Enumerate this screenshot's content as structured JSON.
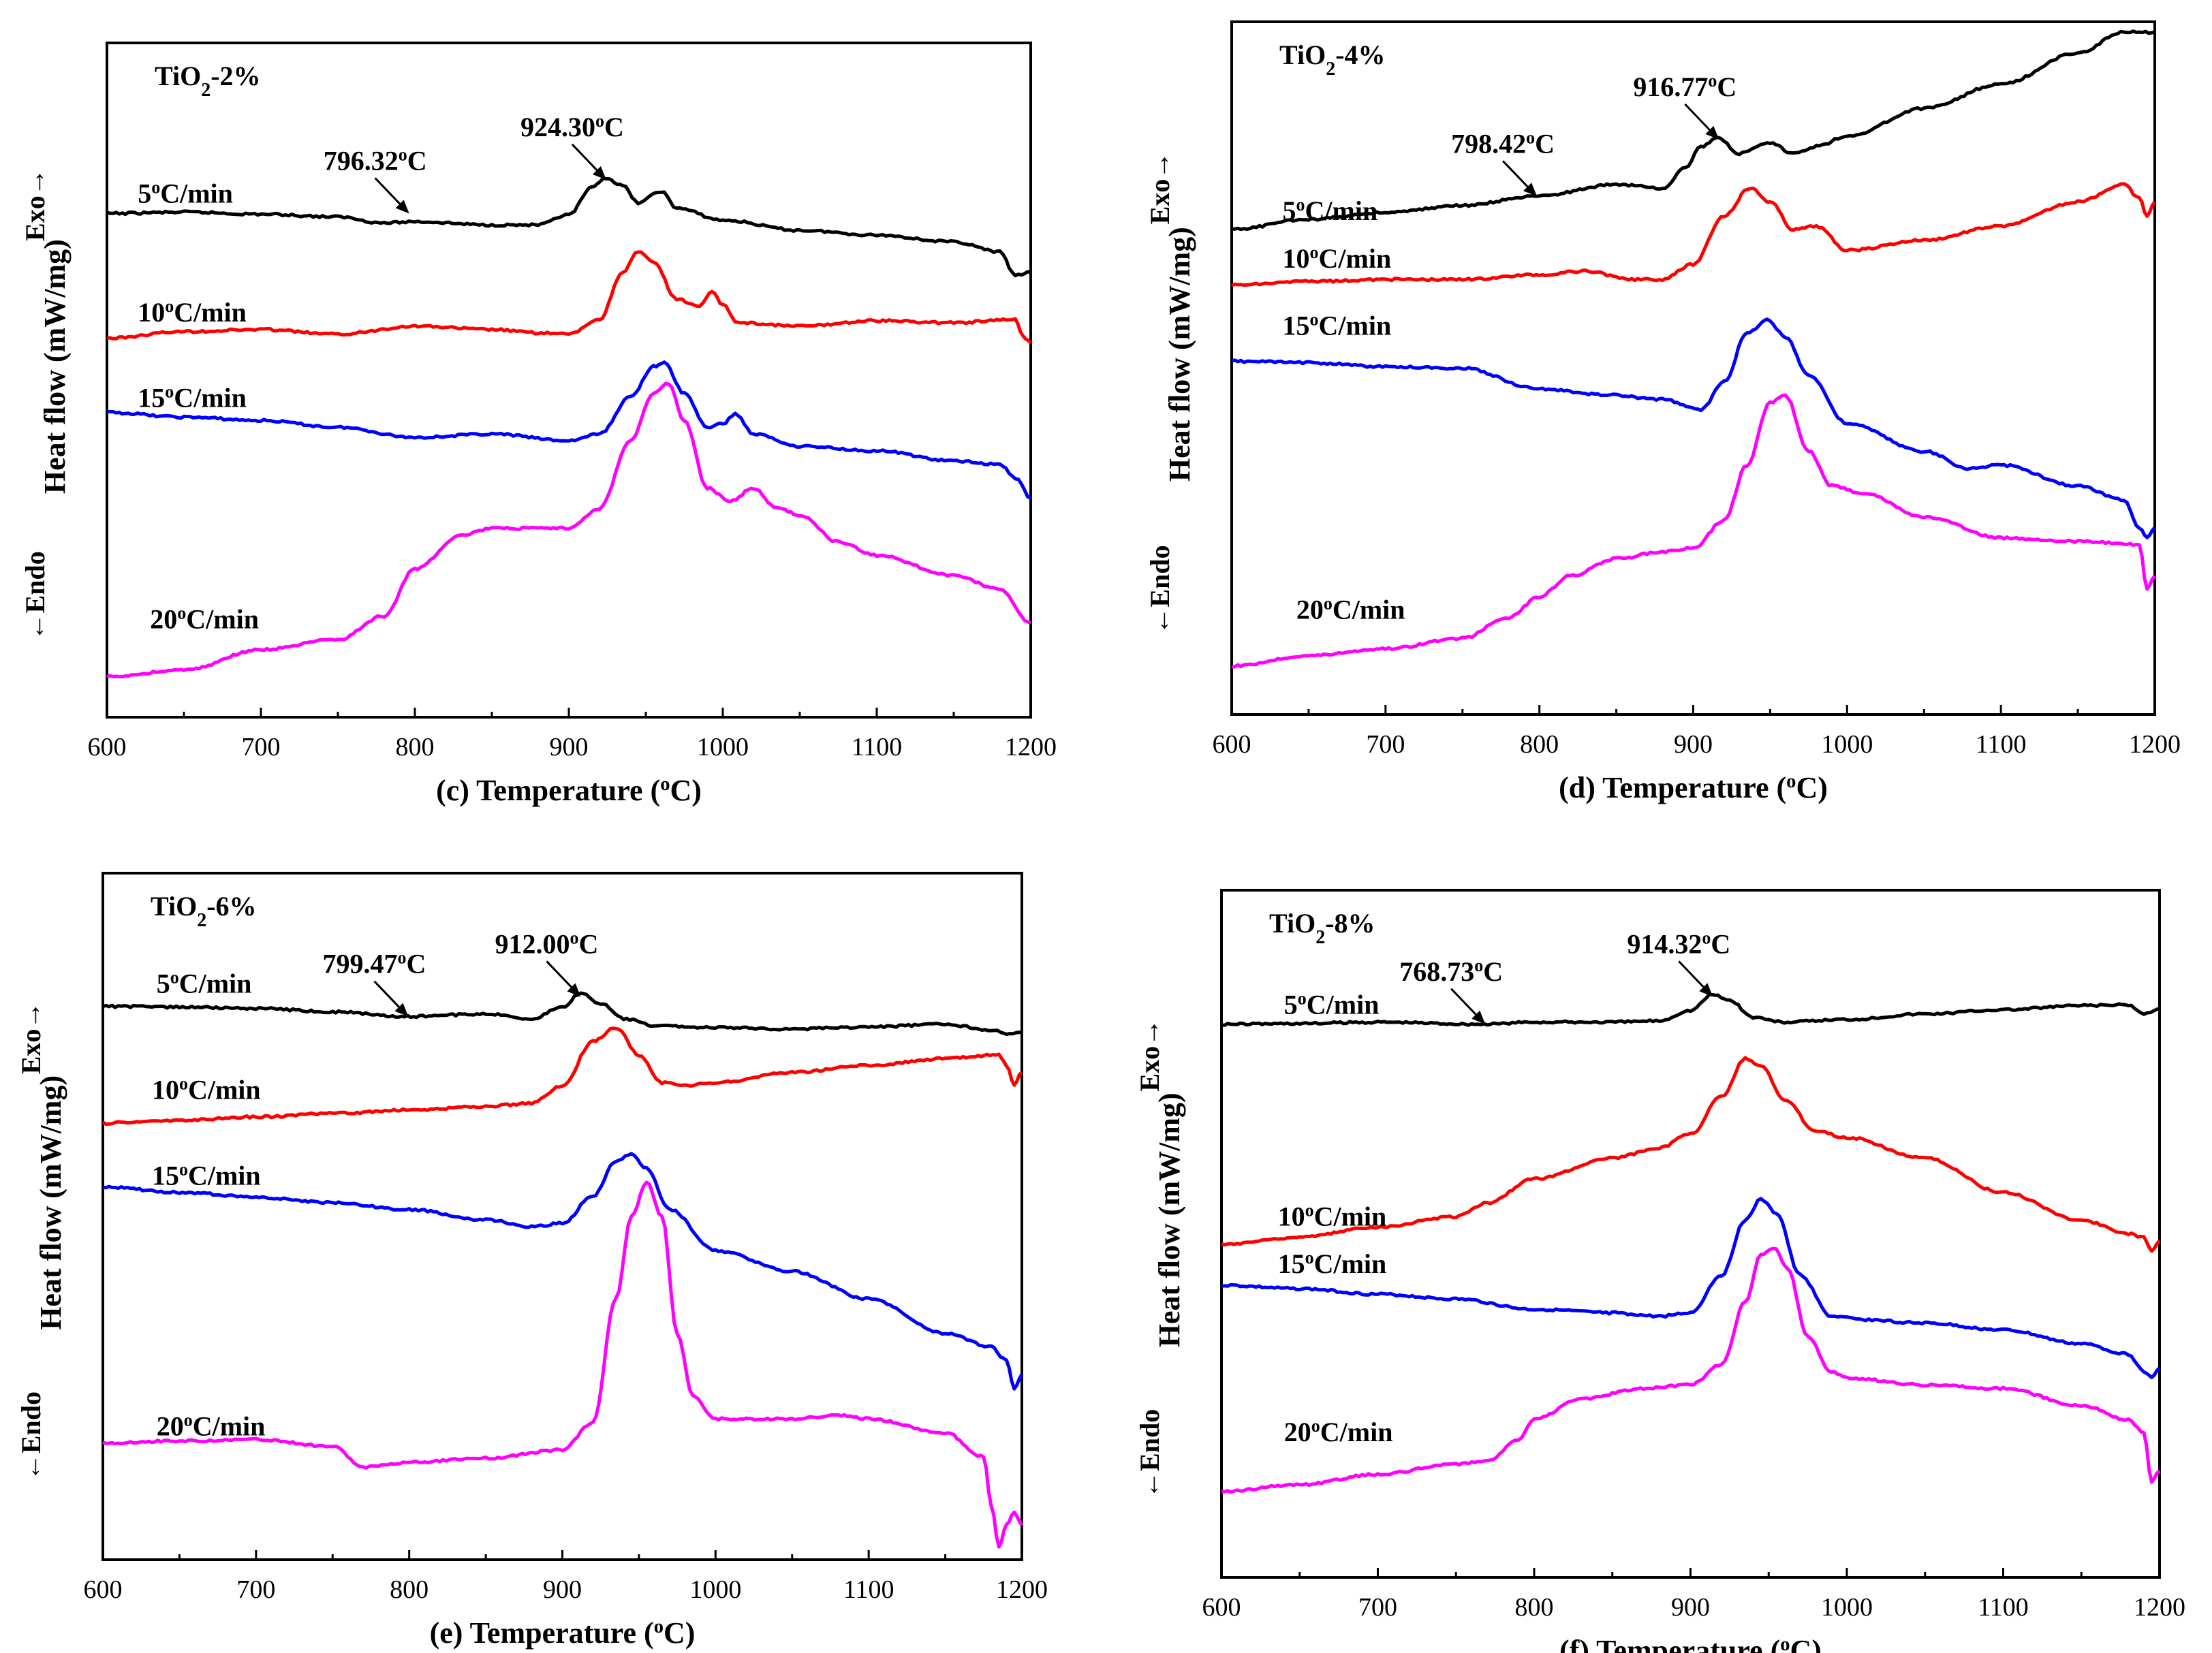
{
  "chart_data": [
    {
      "id": "c",
      "type": "line",
      "title": "TiO2-2%",
      "xlabel": "(c) Temperature (°C)",
      "ylabel": "Heat flow (mW/mg)",
      "exo_label": "Exo→",
      "endo_label": "←Endo",
      "xlim": [
        600,
        1200
      ],
      "x_ticks": [
        600,
        700,
        800,
        900,
        1000,
        1100,
        1200
      ],
      "ylim": [
        0,
        1
      ],
      "yticks": false,
      "grid": false,
      "annotations": [
        {
          "text": "796.32°C",
          "x": 796.32,
          "y": 0.747,
          "series": "5°C/min"
        },
        {
          "text": "924.30°C",
          "x": 924.3,
          "y": 0.797,
          "series": "5°C/min"
        }
      ],
      "series": [
        {
          "name": "5°C/min",
          "color": "#000000",
          "label_x": 620,
          "label_y": 0.763,
          "x": [
            600,
            650,
            700,
            750,
            780,
            800,
            850,
            880,
            900,
            915,
            924,
            935,
            945,
            960,
            970,
            1000,
            1050,
            1100,
            1150,
            1180,
            1190,
            1200
          ],
          "y": [
            0.747,
            0.749,
            0.746,
            0.742,
            0.733,
            0.735,
            0.73,
            0.73,
            0.745,
            0.785,
            0.8,
            0.788,
            0.763,
            0.78,
            0.755,
            0.737,
            0.722,
            0.715,
            0.705,
            0.69,
            0.655,
            0.66
          ]
        },
        {
          "name": "10°C/min",
          "color": "#ff0000",
          "label_x": 620,
          "label_y": 0.587,
          "x": [
            600,
            650,
            700,
            750,
            800,
            850,
            880,
            900,
            920,
            935,
            945,
            955,
            970,
            985,
            993,
            1000,
            1010,
            1050,
            1100,
            1150,
            1190,
            1195,
            1200
          ],
          "y": [
            0.562,
            0.572,
            0.575,
            0.568,
            0.58,
            0.575,
            0.57,
            0.568,
            0.59,
            0.66,
            0.69,
            0.675,
            0.62,
            0.61,
            0.63,
            0.612,
            0.585,
            0.58,
            0.588,
            0.585,
            0.59,
            0.565,
            0.555
          ]
        },
        {
          "name": "15°C/min",
          "color": "#0000ff",
          "label_x": 620,
          "label_y": 0.46,
          "x": [
            600,
            650,
            700,
            750,
            800,
            850,
            900,
            920,
            940,
            955,
            962,
            975,
            990,
            1000,
            1008,
            1020,
            1050,
            1100,
            1150,
            1180,
            1190,
            1200
          ],
          "y": [
            0.452,
            0.445,
            0.44,
            0.43,
            0.415,
            0.42,
            0.41,
            0.42,
            0.475,
            0.52,
            0.525,
            0.48,
            0.43,
            0.435,
            0.45,
            0.42,
            0.402,
            0.395,
            0.38,
            0.375,
            0.355,
            0.325
          ]
        },
        {
          "name": "20°C/min",
          "color": "#ff00ff",
          "label_x": 628,
          "label_y": 0.132,
          "x": [
            600,
            650,
            700,
            750,
            780,
            800,
            830,
            850,
            870,
            900,
            920,
            940,
            955,
            965,
            975,
            990,
            1005,
            1020,
            1035,
            1050,
            1075,
            1100,
            1150,
            1180,
            1200
          ],
          "y": [
            0.06,
            0.07,
            0.1,
            0.115,
            0.15,
            0.22,
            0.27,
            0.28,
            0.28,
            0.28,
            0.31,
            0.41,
            0.48,
            0.495,
            0.44,
            0.34,
            0.32,
            0.34,
            0.31,
            0.3,
            0.26,
            0.24,
            0.21,
            0.19,
            0.14
          ]
        }
      ]
    },
    {
      "id": "d",
      "type": "line",
      "title": "TiO2-4%",
      "xlabel": "(d) Temperature (°C)",
      "ylabel": "Heat flow (mW/mg)",
      "exo_label": "Exo→",
      "endo_label": "←Endo",
      "xlim": [
        600,
        1200
      ],
      "x_ticks": [
        600,
        700,
        800,
        900,
        1000,
        1100,
        1200
      ],
      "ylim": [
        0,
        1
      ],
      "yticks": false,
      "grid": false,
      "annotations": [
        {
          "text": "798.42°C",
          "x": 798.42,
          "y": 0.748,
          "series": "5°C/min"
        },
        {
          "text": "916.77°C",
          "x": 916.77,
          "y": 0.83,
          "series": "5°C/min"
        }
      ],
      "series": [
        {
          "name": "5°C/min",
          "color": "#000000",
          "label_x": 633,
          "label_y": 0.714,
          "x": [
            600,
            650,
            700,
            750,
            798,
            850,
            880,
            895,
            905,
            916,
            930,
            950,
            965,
            980,
            1000,
            1050,
            1100,
            1150,
            1180,
            1200
          ],
          "y": [
            0.7,
            0.715,
            0.725,
            0.735,
            0.748,
            0.765,
            0.76,
            0.79,
            0.82,
            0.832,
            0.81,
            0.825,
            0.81,
            0.82,
            0.835,
            0.875,
            0.91,
            0.955,
            0.985,
            0.985
          ]
        },
        {
          "name": "10°C/min",
          "color": "#ff0000",
          "label_x": 633,
          "label_y": 0.645,
          "x": [
            600,
            650,
            700,
            750,
            800,
            830,
            860,
            880,
            900,
            920,
            937,
            950,
            965,
            980,
            1000,
            1050,
            1100,
            1150,
            1180,
            1190,
            1195,
            1200
          ],
          "y": [
            0.62,
            0.625,
            0.628,
            0.628,
            0.635,
            0.64,
            0.628,
            0.628,
            0.65,
            0.72,
            0.76,
            0.74,
            0.7,
            0.705,
            0.67,
            0.685,
            0.705,
            0.74,
            0.765,
            0.745,
            0.72,
            0.74
          ]
        },
        {
          "name": "15°C/min",
          "color": "#0000ff",
          "label_x": 633,
          "label_y": 0.548,
          "x": [
            600,
            650,
            700,
            750,
            800,
            840,
            880,
            905,
            920,
            935,
            948,
            960,
            975,
            1000,
            1050,
            1080,
            1100,
            1150,
            1180,
            1190,
            1195,
            1200
          ],
          "y": [
            0.51,
            0.508,
            0.502,
            0.5,
            0.47,
            0.462,
            0.455,
            0.44,
            0.48,
            0.55,
            0.57,
            0.545,
            0.49,
            0.42,
            0.38,
            0.355,
            0.36,
            0.33,
            0.31,
            0.27,
            0.255,
            0.27
          ]
        },
        {
          "name": "20°C/min",
          "color": "#ff00ff",
          "label_x": 642,
          "label_y": 0.138,
          "x": [
            600,
            650,
            700,
            750,
            780,
            800,
            820,
            850,
            880,
            900,
            920,
            935,
            950,
            960,
            975,
            990,
            1010,
            1050,
            1100,
            1150,
            1190,
            1195,
            1200
          ],
          "y": [
            0.07,
            0.085,
            0.095,
            0.11,
            0.14,
            0.17,
            0.2,
            0.225,
            0.235,
            0.24,
            0.28,
            0.36,
            0.45,
            0.46,
            0.38,
            0.33,
            0.32,
            0.285,
            0.255,
            0.25,
            0.245,
            0.18,
            0.2
          ]
        }
      ]
    },
    {
      "id": "e",
      "type": "line",
      "title": "TiO2-6%",
      "xlabel": "(e) Temperature (°C)",
      "ylabel": "Heat flow (mW/mg)",
      "exo_label": "Exo→",
      "endo_label": "←Endo",
      "xlim": [
        600,
        1200
      ],
      "x_ticks": [
        600,
        700,
        800,
        900,
        1000,
        1100,
        1200
      ],
      "ylim": [
        0,
        1
      ],
      "yticks": false,
      "grid": false,
      "annotations": [
        {
          "text": "799.47°C",
          "x": 799.47,
          "y": 0.791,
          "series": "5°C/min"
        },
        {
          "text": "912.00°C",
          "x": 912.0,
          "y": 0.82,
          "series": "5°C/min"
        }
      ],
      "series": [
        {
          "name": "5°C/min",
          "color": "#000000",
          "label_x": 635,
          "label_y": 0.826,
          "x": [
            600,
            650,
            700,
            750,
            799,
            850,
            880,
            900,
            912,
            925,
            940,
            960,
            1000,
            1050,
            1100,
            1150,
            1180,
            1190,
            1200
          ],
          "y": [
            0.806,
            0.805,
            0.803,
            0.798,
            0.791,
            0.795,
            0.788,
            0.805,
            0.825,
            0.81,
            0.788,
            0.778,
            0.775,
            0.773,
            0.776,
            0.78,
            0.772,
            0.765,
            0.768
          ]
        },
        {
          "name": "10°C/min",
          "color": "#ff0000",
          "label_x": 632,
          "label_y": 0.671,
          "x": [
            600,
            650,
            700,
            750,
            800,
            850,
            880,
            900,
            920,
            935,
            950,
            965,
            980,
            1000,
            1050,
            1100,
            1150,
            1185,
            1190,
            1195,
            1200
          ],
          "y": [
            0.636,
            0.64,
            0.645,
            0.65,
            0.655,
            0.66,
            0.665,
            0.69,
            0.755,
            0.775,
            0.735,
            0.695,
            0.69,
            0.695,
            0.71,
            0.72,
            0.73,
            0.735,
            0.72,
            0.69,
            0.71
          ]
        },
        {
          "name": "15°C/min",
          "color": "#0000ff",
          "label_x": 632,
          "label_y": 0.546,
          "x": [
            600,
            650,
            700,
            750,
            800,
            850,
            880,
            900,
            920,
            935,
            945,
            955,
            970,
            1000,
            1050,
            1100,
            1150,
            1180,
            1190,
            1195,
            1200
          ],
          "y": [
            0.543,
            0.535,
            0.528,
            0.52,
            0.51,
            0.495,
            0.485,
            0.49,
            0.53,
            0.58,
            0.59,
            0.57,
            0.51,
            0.45,
            0.42,
            0.38,
            0.33,
            0.31,
            0.29,
            0.25,
            0.27
          ]
        },
        {
          "name": "20°C/min",
          "color": "#ff00ff",
          "label_x": 635,
          "label_y": 0.181,
          "x": [
            600,
            650,
            700,
            750,
            770,
            790,
            800,
            850,
            900,
            920,
            935,
            945,
            955,
            965,
            975,
            985,
            1000,
            1050,
            1080,
            1100,
            1150,
            1175,
            1180,
            1185,
            1190,
            1195,
            1200
          ],
          "y": [
            0.17,
            0.173,
            0.175,
            0.165,
            0.135,
            0.14,
            0.142,
            0.148,
            0.16,
            0.2,
            0.38,
            0.5,
            0.55,
            0.5,
            0.33,
            0.24,
            0.205,
            0.205,
            0.21,
            0.205,
            0.185,
            0.15,
            0.08,
            0.02,
            0.05,
            0.07,
            0.05
          ]
        }
      ]
    },
    {
      "id": "f",
      "type": "line",
      "title": "TiO2-8%",
      "xlabel": "(f) Temperature (°C)",
      "ylabel": "Heat flow (mW/mg)",
      "exo_label": "Exo→",
      "endo_label": "←Endo",
      "xlim": [
        600,
        1200
      ],
      "x_ticks": [
        600,
        700,
        800,
        900,
        1000,
        1100,
        1200
      ],
      "ylim": [
        0,
        1
      ],
      "yticks": false,
      "grid": false,
      "annotations": [
        {
          "text": "768.73°C",
          "x": 768.73,
          "y": 0.805,
          "series": "5°C/min"
        },
        {
          "text": "914.32°C",
          "x": 914.32,
          "y": 0.845,
          "series": "5°C/min"
        }
      ],
      "series": [
        {
          "name": "5°C/min",
          "color": "#000000",
          "label_x": 640,
          "label_y": 0.82,
          "x": [
            600,
            650,
            700,
            768,
            800,
            850,
            880,
            900,
            914,
            925,
            940,
            960,
            1000,
            1050,
            1100,
            1150,
            1180,
            1190,
            1200
          ],
          "y": [
            0.805,
            0.806,
            0.808,
            0.805,
            0.808,
            0.808,
            0.81,
            0.825,
            0.848,
            0.84,
            0.815,
            0.808,
            0.812,
            0.82,
            0.826,
            0.832,
            0.833,
            0.82,
            0.828
          ]
        },
        {
          "name": "10°C/min",
          "color": "#ff0000",
          "label_x": 636,
          "label_y": 0.512,
          "x": [
            600,
            650,
            700,
            750,
            770,
            800,
            850,
            880,
            900,
            920,
            935,
            945,
            960,
            980,
            1000,
            1050,
            1100,
            1150,
            1180,
            1190,
            1195,
            1200
          ],
          "y": [
            0.485,
            0.495,
            0.51,
            0.525,
            0.545,
            0.58,
            0.61,
            0.625,
            0.645,
            0.7,
            0.755,
            0.745,
            0.695,
            0.65,
            0.64,
            0.61,
            0.56,
            0.52,
            0.5,
            0.495,
            0.475,
            0.49
          ]
        },
        {
          "name": "15°C/min",
          "color": "#0000ff",
          "label_x": 636,
          "label_y": 0.443,
          "x": [
            600,
            650,
            700,
            750,
            800,
            850,
            880,
            900,
            920,
            935,
            945,
            955,
            970,
            990,
            1010,
            1050,
            1100,
            1150,
            1180,
            1190,
            1195,
            1200
          ],
          "y": [
            0.425,
            0.42,
            0.412,
            0.405,
            0.39,
            0.385,
            0.38,
            0.385,
            0.44,
            0.52,
            0.55,
            0.53,
            0.44,
            0.38,
            0.375,
            0.37,
            0.36,
            0.34,
            0.325,
            0.3,
            0.29,
            0.305
          ]
        },
        {
          "name": "20°C/min",
          "color": "#ff00ff",
          "label_x": 640,
          "label_y": 0.198,
          "x": [
            600,
            650,
            700,
            750,
            770,
            790,
            800,
            830,
            870,
            900,
            920,
            935,
            945,
            953,
            962,
            975,
            990,
            1000,
            1050,
            1100,
            1150,
            1180,
            1190,
            1195,
            1200
          ],
          "y": [
            0.125,
            0.135,
            0.15,
            0.165,
            0.17,
            0.2,
            0.23,
            0.26,
            0.275,
            0.28,
            0.31,
            0.4,
            0.47,
            0.48,
            0.45,
            0.35,
            0.3,
            0.29,
            0.28,
            0.275,
            0.25,
            0.23,
            0.21,
            0.14,
            0.155
          ]
        }
      ]
    }
  ]
}
